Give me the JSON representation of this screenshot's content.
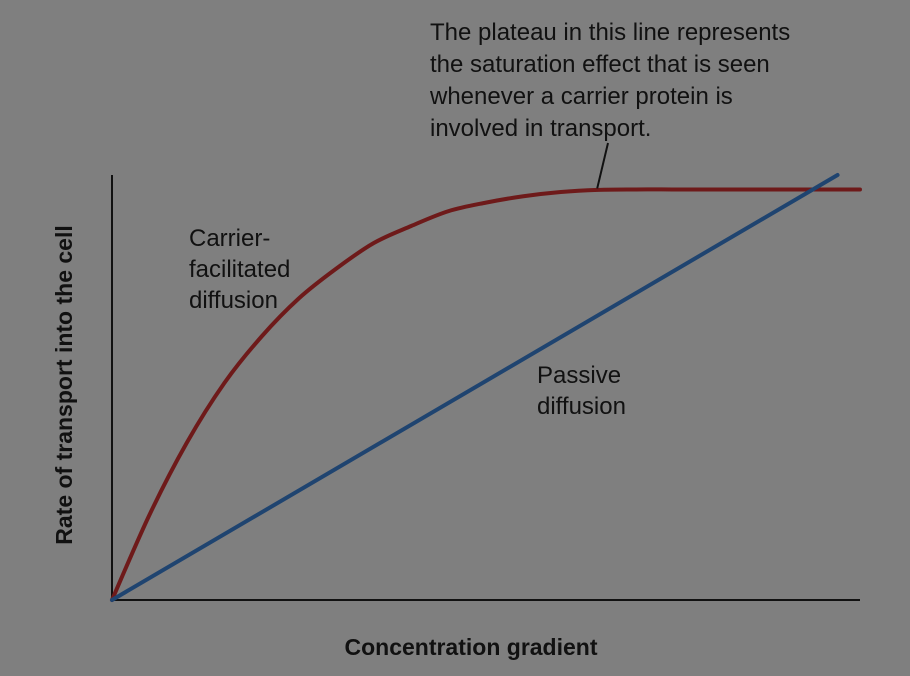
{
  "chart_data": {
    "type": "line",
    "title": "",
    "xlabel": "Concentration gradient",
    "ylabel": "Rate of transport into the cell",
    "xlim": [
      0,
      100
    ],
    "ylim": [
      0,
      100
    ],
    "grid": false,
    "legend": "none",
    "series": [
      {
        "name": "Carrier-facilitated diffusion",
        "label_lines": [
          "Carrier-",
          "facilitated",
          "diffusion"
        ],
        "color": "#6e1a1a",
        "x": [
          0,
          5,
          10,
          15,
          20,
          25,
          30,
          35,
          40,
          45,
          50,
          55,
          60,
          65,
          70,
          75,
          80,
          85,
          90,
          95,
          100
        ],
        "y": [
          0,
          20,
          37,
          51,
          62,
          71,
          78,
          84,
          88,
          91.5,
          93.5,
          95,
          96,
          96.5,
          96.6,
          96.6,
          96.6,
          96.6,
          96.6,
          96.6,
          96.6
        ]
      },
      {
        "name": "Passive diffusion",
        "label_lines": [
          "Passive",
          "diffusion"
        ],
        "color": "#1f4470",
        "x": [
          0,
          97
        ],
        "y": [
          0,
          100
        ]
      }
    ],
    "annotation": {
      "lines": [
        "The plateau in this line represents",
        "the saturation effect that is seen",
        "whenever a carrier protein is",
        "involved in transport."
      ],
      "target": {
        "x": 65,
        "y": 96.6
      }
    }
  }
}
